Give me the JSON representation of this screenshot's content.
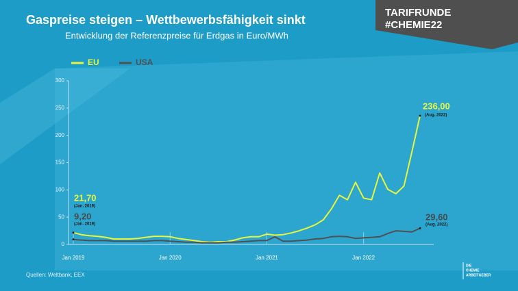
{
  "chart_data": {
    "type": "line",
    "title": "Gaspreise steigen – Wettbewerbsfähigkeit sinkt",
    "subtitle": "Entwicklung der Referenzpreise für Erdgas in Euro/MWh",
    "badge": [
      "TARIFRUNDE",
      "#CHEMIE22"
    ],
    "source": "Quellen: Weltbank, EEX",
    "logo": [
      "DIE",
      "CHEMIE",
      "ARBEITGEBER"
    ],
    "categories": [
      "Jan 2019",
      null,
      null,
      null,
      null,
      null,
      null,
      null,
      null,
      null,
      null,
      null,
      "Jan 2020",
      null,
      null,
      null,
      null,
      null,
      null,
      null,
      null,
      null,
      null,
      null,
      "Jan 2021",
      null,
      null,
      null,
      null,
      null,
      null,
      null,
      null,
      null,
      null,
      null,
      "Jan 2022",
      null,
      null,
      null,
      null,
      null,
      null,
      null
    ],
    "ylim": [
      0,
      300
    ],
    "yticks": [
      0,
      50,
      100,
      150,
      200,
      250,
      300
    ],
    "series": [
      {
        "name": "EU",
        "color": "#e8f53c",
        "values": [
          21.7,
          18,
          16,
          15,
          13,
          10,
          10,
          10,
          11,
          13,
          15,
          15,
          14,
          11,
          9,
          7,
          5,
          4,
          5,
          5,
          8,
          12,
          14,
          14,
          19,
          17,
          18,
          21,
          25,
          30,
          36,
          45,
          65,
          90,
          82,
          114,
          85,
          82,
          131,
          101,
          93,
          107,
          170,
          236
        ],
        "value_labels": [
          "21,70",
          null,
          null,
          null,
          null,
          null,
          null,
          null,
          null,
          null,
          null,
          null,
          null,
          null,
          null,
          null,
          null,
          null,
          null,
          null,
          null,
          null,
          null,
          null,
          null,
          null,
          null,
          null,
          null,
          null,
          null,
          null,
          null,
          null,
          null,
          null,
          null,
          null,
          null,
          null,
          null,
          null,
          null,
          "236,00"
        ]
      },
      {
        "name": "USA",
        "color": "#505050",
        "values": [
          9.2,
          8,
          7,
          7,
          7,
          6,
          6,
          6,
          6,
          6,
          7,
          7,
          6,
          5,
          4,
          4,
          3,
          3,
          3,
          4,
          4,
          5,
          6,
          7,
          7,
          14,
          6,
          6,
          7,
          8,
          10,
          11,
          14,
          15,
          14,
          11,
          12,
          13,
          14,
          20,
          25,
          24,
          23,
          29.6
        ],
        "value_labels": [
          "9,20",
          null,
          null,
          null,
          null,
          null,
          null,
          null,
          null,
          null,
          null,
          null,
          null,
          null,
          null,
          null,
          null,
          null,
          null,
          null,
          null,
          null,
          null,
          null,
          null,
          null,
          null,
          null,
          null,
          null,
          null,
          null,
          null,
          null,
          null,
          null,
          null,
          null,
          null,
          null,
          null,
          null,
          null,
          "29,60"
        ]
      }
    ],
    "annotations": [
      "(Jan. 2019)",
      "(Jan. 2019)",
      "(Aug. 2022)",
      "(Aug. 2022)"
    ]
  }
}
